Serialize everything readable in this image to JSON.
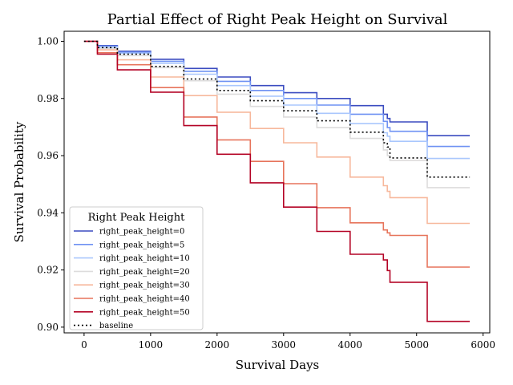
{
  "chart_data": {
    "type": "line",
    "title": "Partial Effect of Right Peak Height on Survival",
    "xlabel": "Survival Days",
    "ylabel": "Survival Probability",
    "xlim": [
      -300,
      6100
    ],
    "ylim": [
      0.898,
      1.0035
    ],
    "xticks": [
      0,
      1000,
      2000,
      3000,
      4000,
      5000,
      6000
    ],
    "yticks": [
      0.9,
      0.92,
      0.94,
      0.96,
      0.98,
      1.0
    ],
    "ytick_labels": [
      "0.90",
      "0.92",
      "0.94",
      "0.96",
      "0.98",
      "1.00"
    ],
    "grid": false,
    "legend": {
      "title": "Right Peak Height",
      "placement": "lower-left"
    },
    "series": [
      {
        "name": "right_peak_height=0",
        "color": "#3b4cc0",
        "dash": "",
        "x": [
          0,
          200,
          500,
          1000,
          1500,
          2000,
          2500,
          3000,
          3500,
          4000,
          4500,
          4560,
          4600,
          5150,
          5160,
          5800
        ],
        "y": [
          1.0,
          0.9985,
          0.9965,
          0.9937,
          0.9905,
          0.9875,
          0.9845,
          0.982,
          0.98,
          0.9775,
          0.9745,
          0.973,
          0.9718,
          0.9718,
          0.967,
          0.967
        ]
      },
      {
        "name": "right_peak_height=5",
        "color": "#6f92f3",
        "dash": "",
        "x": [
          0,
          200,
          500,
          1000,
          1500,
          2000,
          2500,
          3000,
          3500,
          4000,
          4500,
          4560,
          4600,
          5150,
          5160,
          5800
        ],
        "y": [
          1.0,
          0.9983,
          0.9962,
          0.993,
          0.9895,
          0.986,
          0.9828,
          0.98,
          0.9777,
          0.9745,
          0.972,
          0.9698,
          0.9685,
          0.9685,
          0.9632,
          0.9632
        ]
      },
      {
        "name": "right_peak_height=10",
        "color": "#aac7fd",
        "dash": "",
        "x": [
          0,
          200,
          500,
          1000,
          1500,
          2000,
          2500,
          3000,
          3500,
          4000,
          4500,
          4560,
          4600,
          5150,
          5160,
          5800
        ],
        "y": [
          1.0,
          0.998,
          0.9958,
          0.9923,
          0.9885,
          0.9845,
          0.9808,
          0.9777,
          0.9748,
          0.9712,
          0.968,
          0.9668,
          0.965,
          0.965,
          0.959,
          0.959
        ]
      },
      {
        "name": "right_peak_height=20",
        "color": "#dddcdc",
        "dash": "",
        "x": [
          0,
          200,
          500,
          1000,
          1500,
          2000,
          2500,
          3000,
          3500,
          4000,
          4500,
          4560,
          4600,
          5150,
          5160,
          5800
        ],
        "y": [
          1.0,
          0.9975,
          0.995,
          0.9908,
          0.9862,
          0.9815,
          0.9772,
          0.9735,
          0.9698,
          0.966,
          0.962,
          0.96,
          0.9583,
          0.9583,
          0.9488,
          0.9488
        ]
      },
      {
        "name": "right_peak_height=30",
        "color": "#f7b89c",
        "dash": "",
        "x": [
          0,
          200,
          500,
          1000,
          1500,
          2000,
          2500,
          3000,
          3500,
          4000,
          4500,
          4560,
          4600,
          5150,
          5160,
          5800
        ],
        "y": [
          1.0,
          0.997,
          0.9935,
          0.9875,
          0.981,
          0.9752,
          0.9695,
          0.9645,
          0.9595,
          0.9525,
          0.9495,
          0.9475,
          0.9453,
          0.9453,
          0.9363,
          0.9363
        ]
      },
      {
        "name": "right_peak_height=40",
        "color": "#e7745b",
        "dash": "",
        "x": [
          0,
          200,
          500,
          1000,
          1500,
          2000,
          2500,
          3000,
          3500,
          4000,
          4500,
          4560,
          4600,
          5150,
          5160,
          5800
        ],
        "y": [
          1.0,
          0.996,
          0.9918,
          0.9838,
          0.9735,
          0.9655,
          0.958,
          0.9502,
          0.9418,
          0.9365,
          0.934,
          0.933,
          0.9321,
          0.9321,
          0.921,
          0.921
        ]
      },
      {
        "name": "right_peak_height=50",
        "color": "#b40426",
        "dash": "",
        "x": [
          0,
          200,
          500,
          1000,
          1500,
          2000,
          2500,
          3000,
          3500,
          4000,
          4500,
          4560,
          4600,
          5150,
          5160,
          5800
        ],
        "y": [
          1.0,
          0.9955,
          0.99,
          0.9822,
          0.9705,
          0.9605,
          0.9505,
          0.942,
          0.9335,
          0.9255,
          0.9235,
          0.9198,
          0.9157,
          0.9157,
          0.902,
          0.902
        ]
      },
      {
        "name": "baseline",
        "color": "#000000",
        "dash": "2,3",
        "x": [
          0,
          200,
          500,
          1000,
          1500,
          2000,
          2500,
          3000,
          3500,
          4000,
          4500,
          4560,
          4600,
          5150,
          5160,
          5800
        ],
        "y": [
          1.0,
          0.9978,
          0.9955,
          0.9912,
          0.9868,
          0.9828,
          0.9792,
          0.9757,
          0.9722,
          0.9682,
          0.9645,
          0.963,
          0.9592,
          0.9592,
          0.9525,
          0.9525
        ]
      }
    ]
  }
}
